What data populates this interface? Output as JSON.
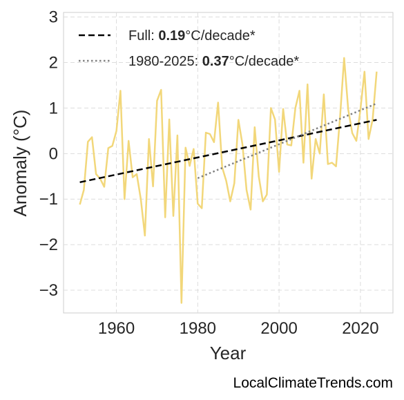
{
  "chart_data": {
    "type": "line",
    "xlabel": "Year",
    "ylabel": "Anomaly (°C)",
    "xlim": [
      1947,
      2028
    ],
    "ylim": [
      -3.5,
      3.1
    ],
    "xticks": [
      1960,
      1980,
      2000,
      2020
    ],
    "yticks": [
      -3,
      -2,
      -1,
      0,
      1,
      2,
      3
    ],
    "ytick_labels": [
      "−3",
      "−2",
      "−1",
      "0",
      "1",
      "2",
      "3"
    ],
    "grid": true,
    "legend_position": "top-left",
    "series": [
      {
        "style": "line",
        "color": "#f2d77a",
        "x": [
          1951,
          1952,
          1953,
          1954,
          1955,
          1956,
          1957,
          1958,
          1959,
          1960,
          1961,
          1962,
          1963,
          1964,
          1965,
          1966,
          1967,
          1968,
          1969,
          1970,
          1971,
          1972,
          1973,
          1974,
          1975,
          1976,
          1977,
          1978,
          1979,
          1980,
          1981,
          1982,
          1983,
          1984,
          1985,
          1986,
          1987,
          1988,
          1989,
          1990,
          1991,
          1992,
          1993,
          1994,
          1995,
          1996,
          1997,
          1998,
          1999,
          2000,
          2001,
          2002,
          2003,
          2004,
          2005,
          2006,
          2007,
          2008,
          2009,
          2010,
          2011,
          2012,
          2013,
          2014,
          2015,
          2016,
          2017,
          2018,
          2019,
          2020,
          2021,
          2022,
          2023,
          2024
        ],
        "values": [
          -1.12,
          -0.8,
          0.26,
          0.36,
          -0.45,
          -0.55,
          -0.73,
          0.12,
          0.17,
          0.5,
          1.38,
          -1.0,
          0.28,
          -0.52,
          -0.45,
          -1.0,
          -1.8,
          0.32,
          -0.72,
          1.16,
          1.4,
          -1.4,
          0.75,
          -1.37,
          0.4,
          -3.28,
          0.13,
          -0.27,
          0.1,
          -1.1,
          -1.2,
          0.46,
          0.43,
          0.25,
          1.12,
          -0.3,
          -0.6,
          -1.05,
          -0.65,
          0.74,
          0.2,
          -0.8,
          -1.23,
          0.58,
          -0.5,
          -1.05,
          -0.9,
          1.0,
          0.75,
          -0.4,
          0.98,
          0.2,
          0.18,
          1.0,
          1.38,
          -0.2,
          1.52,
          -0.55,
          0.32,
          0.0,
          1.3,
          -0.23,
          -0.2,
          -0.28,
          0.8,
          2.1,
          0.97,
          0.45,
          0.28,
          0.97,
          1.8,
          0.32,
          0.75,
          1.8
        ]
      },
      {
        "name": "Full",
        "style": "dashed",
        "color": "#000000",
        "x": [
          1951,
          2024
        ],
        "values": [
          -0.63,
          0.74
        ]
      },
      {
        "name": "1980-2025",
        "style": "dotted",
        "color": "#808080",
        "x": [
          1980,
          2024
        ],
        "values": [
          -0.54,
          1.1
        ]
      }
    ],
    "legend": [
      {
        "series": "Full",
        "label_pre": "Full: ",
        "label_bold": "0.19",
        "label_post": "°C/decade*"
      },
      {
        "series": "1980-2025",
        "label_pre": "1980-2025: ",
        "label_bold": "0.37",
        "label_post": "°C/decade*"
      }
    ]
  },
  "watermark": "LocalClimateTrends.com"
}
